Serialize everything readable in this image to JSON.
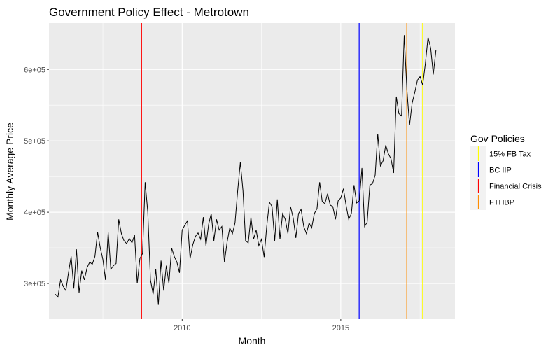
{
  "chart_data": {
    "type": "line",
    "title": "Government Policy Effect - Metrotown",
    "xlabel": "Month",
    "ylabel": "Monthly Average Price",
    "xlim": [
      2005.8,
      2018.6
    ],
    "ylim": [
      250000,
      665000
    ],
    "x_ticks": [
      2010,
      2015
    ],
    "x_tick_labels": [
      "2010",
      "2015"
    ],
    "y_ticks": [
      300000,
      400000,
      500000,
      600000
    ],
    "y_tick_labels": [
      "3e+05",
      "4e+05",
      "5e+05",
      "6e+05"
    ],
    "grid": true,
    "background": "#ebebeb",
    "line_color": "#000000",
    "series": [
      {
        "x_start": 2006.0,
        "x_step": 0.0833333,
        "values": [
          285000,
          281000,
          305000,
          296000,
          290000,
          315000,
          338000,
          293000,
          348000,
          287000,
          318000,
          305000,
          322000,
          330000,
          327000,
          338000,
          372000,
          350000,
          334000,
          305000,
          372000,
          320000,
          325000,
          328000,
          390000,
          370000,
          360000,
          356000,
          363000,
          357000,
          368000,
          300000,
          335000,
          342000,
          442000,
          400000,
          305000,
          285000,
          320000,
          270000,
          332000,
          290000,
          325000,
          300000,
          350000,
          338000,
          330000,
          315000,
          375000,
          382000,
          388000,
          335000,
          354000,
          366000,
          371000,
          362000,
          393000,
          353000,
          383000,
          398000,
          360000,
          390000,
          375000,
          380000,
          330000,
          358000,
          378000,
          370000,
          385000,
          430000,
          470000,
          430000,
          360000,
          357000,
          393000,
          362000,
          375000,
          353000,
          362000,
          337000,
          380000,
          414000,
          408000,
          360000,
          418000,
          362000,
          398000,
          390000,
          370000,
          408000,
          392000,
          364000,
          398000,
          404000,
          380000,
          370000,
          385000,
          378000,
          398000,
          405000,
          442000,
          415000,
          412000,
          426000,
          410000,
          408000,
          390000,
          416000,
          420000,
          433000,
          410000,
          390000,
          398000,
          438000,
          413000,
          416000,
          462000,
          380000,
          386000,
          438000,
          440000,
          452000,
          510000,
          465000,
          472000,
          494000,
          482000,
          475000,
          455000,
          562000,
          538000,
          535000,
          648000,
          572000,
          522000,
          553000,
          568000,
          585000,
          590000,
          578000,
          608000,
          645000,
          630000,
          593000,
          627000
        ]
      }
    ],
    "vlines": [
      {
        "x": 2008.72,
        "color": "#ff0000",
        "policy": "Financial Crisis"
      },
      {
        "x": 2015.58,
        "color": "#0000ff",
        "policy": "BC IIP"
      },
      {
        "x": 2017.08,
        "color": "#ff8c00",
        "policy": "FTHBP"
      },
      {
        "x": 2017.58,
        "color": "#ffff00",
        "policy": "15% FB Tax"
      }
    ],
    "legend": {
      "title": "Gov Policies",
      "position": "right",
      "entries": [
        {
          "label": "15% FB Tax",
          "color": "#ffff00"
        },
        {
          "label": "BC IIP",
          "color": "#0000ff"
        },
        {
          "label": "Financial Crisis",
          "color": "#ff0000"
        },
        {
          "label": "FTHBP",
          "color": "#ff8c00"
        }
      ]
    }
  }
}
